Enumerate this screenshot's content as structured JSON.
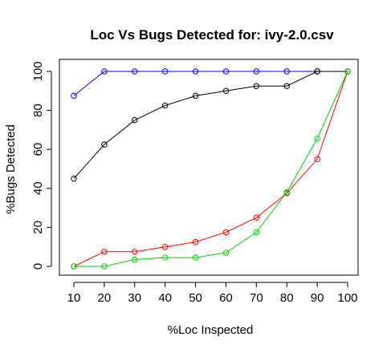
{
  "chart_data": {
    "type": "line",
    "title": "Loc Vs Bugs Detected for: ivy-2.0.csv",
    "xlabel": "%Loc Inspected",
    "ylabel": "%Bugs Detected",
    "x": [
      10,
      20,
      30,
      40,
      50,
      60,
      70,
      80,
      90,
      100
    ],
    "x_ticks": [
      "10",
      "20",
      "30",
      "40",
      "50",
      "60",
      "70",
      "80",
      "90",
      "100"
    ],
    "y_ticks": [
      "0",
      "20",
      "40",
      "60",
      "80",
      "100"
    ],
    "xlim": [
      10,
      100
    ],
    "ylim": [
      0,
      100
    ],
    "grid": false,
    "legend": "none",
    "series": [
      {
        "color": "#0000ff",
        "values": [
          87.5,
          100,
          100,
          100,
          100,
          100,
          100,
          100,
          100,
          100
        ]
      },
      {
        "color": "#000000",
        "values": [
          45,
          62.5,
          75,
          82.5,
          87.5,
          90,
          92.5,
          92.5,
          100,
          100
        ]
      },
      {
        "color": "#ff0000",
        "values": [
          0,
          7.5,
          7.5,
          10,
          12.5,
          17.5,
          25,
          37.5,
          55,
          100
        ]
      },
      {
        "color": "#00cd00",
        "values": [
          0,
          0,
          3.5,
          4.5,
          4.5,
          7,
          17.5,
          38,
          65.5,
          100
        ]
      }
    ]
  }
}
